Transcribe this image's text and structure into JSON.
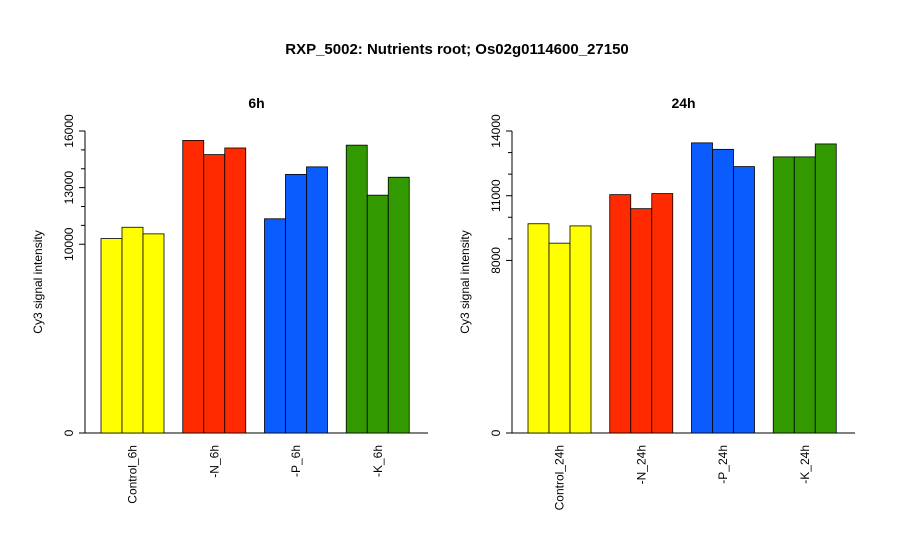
{
  "title": "RXP_5002: Nutrients root; Os02g0114600_27150",
  "chart_data": [
    {
      "type": "bar",
      "title": "6h",
      "ylabel": "Cy3 signal intensity",
      "ylim": [
        0,
        16000
      ],
      "yticks": [
        0,
        10000,
        13000,
        16000
      ],
      "yminor_ticks": [
        11000,
        12000,
        14000,
        15000
      ],
      "categories": [
        "Control_6h",
        "-N_6h",
        "-P_6h",
        "-K_6h"
      ],
      "colors": [
        "#ffff00",
        "#ff2a00",
        "#0a5cff",
        "#339900"
      ],
      "values": [
        [
          10300,
          10900,
          10550
        ],
        [
          15500,
          14750,
          15100
        ],
        [
          11350,
          13700,
          14100
        ],
        [
          15250,
          12600,
          13550
        ]
      ]
    },
    {
      "type": "bar",
      "title": "24h",
      "ylabel": "Cy3 signal intensity",
      "ylim": [
        0,
        14000
      ],
      "yticks": [
        0,
        8000,
        11000,
        14000
      ],
      "yminor_ticks": [
        9000,
        10000,
        12000,
        13000
      ],
      "categories": [
        "Control_24h",
        "-N_24h",
        "-P_24h",
        "-K_24h"
      ],
      "colors": [
        "#ffff00",
        "#ff2a00",
        "#0a5cff",
        "#339900"
      ],
      "values": [
        [
          9700,
          8800,
          9600
        ],
        [
          11050,
          10400,
          11100
        ],
        [
          13450,
          13150,
          12350
        ],
        [
          12800,
          12800,
          13400
        ]
      ]
    }
  ]
}
